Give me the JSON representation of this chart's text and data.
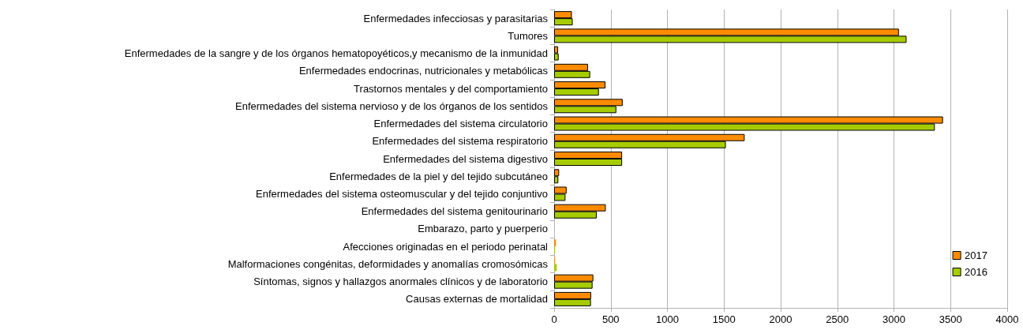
{
  "chart_data": {
    "type": "bar",
    "orientation": "horizontal",
    "categories": [
      "Enfermedades infecciosas y parasitarias",
      "Tumores",
      "Enfermedades de la sangre y de los órganos hematopoyéticos,y mecanismo de la inmunidad",
      "Enfermedades endocrinas, nutricionales y metabólicas",
      "Trastornos mentales y del comportamiento",
      "Enfermedades del sistema nervioso y de los órganos de los sentidos",
      "Enfermedades del sistema circulatorio",
      "Enfermedades del sistema respiratorio",
      "Enfermedades del sistema digestivo",
      "Enfermedades de la piel y del tejido subcutáneo",
      "Enfermedades del sistema osteomuscular y del tejido conjuntivo",
      "Enfermedades del sistema genitourinario",
      "Embarazo, parto y puerperio",
      "Afecciones originadas en el periodo perinatal",
      "Malformaciones congénitas, deformidades y anomalías cromosómicas",
      "Síntomas, signos y hallazgos anormales clínicos y de laboratorio",
      "Causas externas de mortalidad"
    ],
    "series": [
      {
        "name": "2017",
        "color": "#ff8c00",
        "values": [
          157,
          3044,
          35,
          299,
          453,
          605,
          3433,
          1682,
          600,
          44,
          110,
          456,
          0,
          16,
          9,
          346,
          327
        ]
      },
      {
        "name": "2016",
        "color": "#a6cc00",
        "values": [
          164,
          3111,
          40,
          318,
          395,
          549,
          3361,
          1516,
          600,
          37,
          100,
          376,
          0,
          9,
          23,
          339,
          325
        ]
      }
    ],
    "xlim": [
      0,
      4000
    ],
    "xticks": [
      0,
      500,
      1000,
      1500,
      2000,
      2500,
      3000,
      3500,
      4000
    ],
    "grid": "x",
    "legend": "bottom right"
  }
}
